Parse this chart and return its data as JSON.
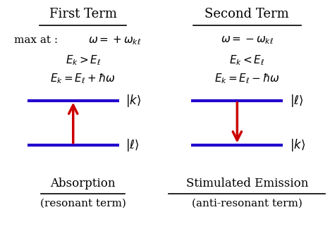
{
  "bg_color": "#ffffff",
  "text_color": "#000000",
  "line_color": "#2200cc",
  "arrow_color": "#cc0000",
  "left_title": "First Term",
  "right_title": "Second Term",
  "left_eq1": "$\\omega = +\\omega_{k\\ell}$",
  "left_eq2": "$E_k > E_\\ell$",
  "left_eq3": "$E_k = E_\\ell + \\hbar\\omega$",
  "right_eq1": "$\\omega = -\\omega_{k\\ell}$",
  "right_eq2": "$E_k < E_\\ell$",
  "right_eq3": "$E_k = E_\\ell - \\hbar\\omega$",
  "left_label_top": "$|k\\rangle$",
  "left_label_bot": "$|\\ell\\rangle$",
  "right_label_top": "$|\\ell\\rangle$",
  "right_label_bot": "$|k\\rangle$",
  "left_bottom_label1": "Absorption",
  "left_bottom_label2": "(resonant term)",
  "right_bottom_label1": "Stimulated Emission",
  "right_bottom_label2": "(anti-resonant term)",
  "left_max_label": "max at : ",
  "figsize": [
    4.68,
    3.35
  ],
  "dpi": 100
}
